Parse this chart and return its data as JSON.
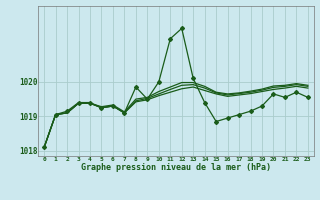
{
  "xlabel": "Graphe pression niveau de la mer (hPa)",
  "background_color": "#cce8ee",
  "grid_color": "#aacccc",
  "line_color": "#1a5c1a",
  "marker_color": "#1a5c1a",
  "hours": [
    0,
    1,
    2,
    3,
    4,
    5,
    6,
    7,
    8,
    9,
    10,
    11,
    12,
    13,
    14,
    15,
    16,
    17,
    18,
    19,
    20,
    21,
    22,
    23
  ],
  "series1": [
    1018.1,
    1019.05,
    1019.15,
    1019.4,
    1019.4,
    1019.25,
    1019.3,
    1019.1,
    1019.85,
    1019.5,
    1020.0,
    1021.25,
    1021.55,
    1020.1,
    1019.4,
    1018.85,
    1018.95,
    1019.05,
    1019.15,
    1019.3,
    1019.65,
    1019.55,
    1019.7,
    1019.55
  ],
  "series2": [
    1018.1,
    1019.05,
    1019.1,
    1019.38,
    1019.38,
    1019.25,
    1019.3,
    1019.1,
    1019.42,
    1019.48,
    1019.6,
    1019.7,
    1019.8,
    1019.85,
    1019.75,
    1019.65,
    1019.58,
    1019.62,
    1019.66,
    1019.72,
    1019.78,
    1019.82,
    1019.87,
    1019.82
  ],
  "series3": [
    1018.1,
    1019.05,
    1019.1,
    1019.38,
    1019.38,
    1019.25,
    1019.3,
    1019.1,
    1019.45,
    1019.52,
    1019.65,
    1019.78,
    1019.9,
    1019.92,
    1019.82,
    1019.68,
    1019.62,
    1019.66,
    1019.7,
    1019.76,
    1019.84,
    1019.87,
    1019.92,
    1019.87
  ],
  "series4": [
    1018.1,
    1019.05,
    1019.1,
    1019.38,
    1019.38,
    1019.28,
    1019.33,
    1019.13,
    1019.5,
    1019.55,
    1019.72,
    1019.85,
    1019.98,
    1019.98,
    1019.87,
    1019.7,
    1019.65,
    1019.68,
    1019.73,
    1019.79,
    1019.88,
    1019.9,
    1019.95,
    1019.9
  ],
  "ylim": [
    1017.85,
    1022.2
  ],
  "yticks": [
    1018,
    1019,
    1020
  ],
  "xtick_labels": [
    "0",
    "1",
    "2",
    "3",
    "4",
    "5",
    "6",
    "7",
    "8",
    "9",
    "10",
    "11",
    "12",
    "13",
    "14",
    "15",
    "16",
    "17",
    "18",
    "19",
    "20",
    "21",
    "22",
    "23"
  ]
}
